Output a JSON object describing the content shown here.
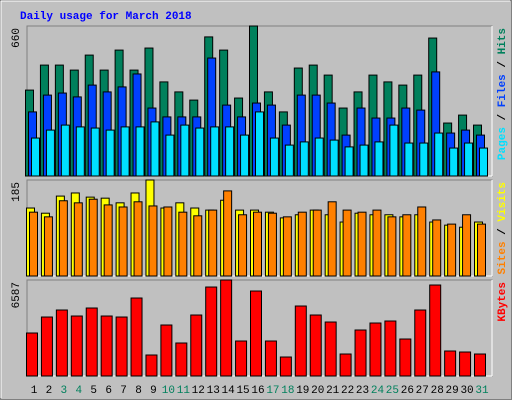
{
  "chart_data": [
    {
      "type": "bar",
      "title": "Daily usage for March 2018",
      "ylim": [
        0,
        660
      ],
      "yticks": [
        660
      ],
      "series": [
        {
          "name": "Hits",
          "color": "#00805c",
          "values": [
            378,
            488,
            488,
            466,
            532,
            466,
            554,
            466,
            563,
            414,
            370,
            334,
            612,
            554,
            343,
            660,
            370,
            282,
            475,
            488,
            444,
            299,
            370,
            444,
            414,
            400,
            444,
            607,
            233,
            268,
            224
          ]
        },
        {
          "name": "Files",
          "color": "#0040ff",
          "values": [
            282,
            356,
            365,
            348,
            400,
            370,
            392,
            449,
            299,
            260,
            260,
            260,
            519,
            312,
            260,
            321,
            312,
            224,
            356,
            356,
            321,
            180,
            299,
            255,
            255,
            299,
            290,
            458,
            189,
            202,
            180
          ]
        },
        {
          "name": "Pages",
          "color": "#00e0ff",
          "values": [
            167,
            202,
            224,
            216,
            211,
            202,
            216,
            216,
            238,
            180,
            224,
            211,
            216,
            216,
            180,
            282,
            167,
            136,
            150,
            167,
            158,
            128,
            136,
            150,
            224,
            145,
            145,
            189,
            123,
            145,
            123
          ]
        }
      ]
    },
    {
      "type": "bar",
      "ylim": [
        0,
        185
      ],
      "yticks": [
        185
      ],
      "series": [
        {
          "name": "Visits",
          "color": "#ffff00",
          "values": [
            131,
            121,
            154,
            160,
            152,
            150,
            141,
            160,
            185,
            131,
            141,
            131,
            127,
            146,
            127,
            127,
            123,
            112,
            118,
            127,
            118,
            104,
            121,
            118,
            118,
            114,
            118,
            104,
            98,
            94,
            104
          ]
        },
        {
          "name": "Sites",
          "color": "#ff8000",
          "values": [
            123,
            114,
            145,
            141,
            148,
            137,
            133,
            143,
            135,
            133,
            123,
            116,
            127,
            164,
            118,
            123,
            121,
            114,
            123,
            127,
            143,
            127,
            123,
            127,
            114,
            118,
            133,
            108,
            100,
            118,
            100
          ]
        }
      ]
    },
    {
      "type": "bar",
      "ylim": [
        0,
        6587
      ],
      "yticks": [
        6587
      ],
      "categories": [
        "1",
        "2",
        "3",
        "4",
        "5",
        "6",
        "7",
        "8",
        "9",
        "10",
        "11",
        "12",
        "13",
        "14",
        "15",
        "16",
        "17",
        "18",
        "19",
        "20",
        "21",
        "22",
        "23",
        "24",
        "25",
        "26",
        "27",
        "28",
        "29",
        "30",
        "31"
      ],
      "category_colors": [
        "#000000",
        "#000000",
        "#00805c",
        "#00805c",
        "#000000",
        "#000000",
        "#000000",
        "#000000",
        "#000000",
        "#00805c",
        "#00805c",
        "#000000",
        "#000000",
        "#000000",
        "#000000",
        "#000000",
        "#00805c",
        "#00805c",
        "#000000",
        "#000000",
        "#000000",
        "#000000",
        "#000000",
        "#00805c",
        "#00805c",
        "#000000",
        "#000000",
        "#000000",
        "#000000",
        "#000000",
        "#00805c"
      ],
      "series": [
        {
          "name": "KBytes",
          "color": "#ff0000",
          "values": [
            2950,
            4047,
            4528,
            4116,
            4665,
            4116,
            4047,
            5351,
            1441,
            3499,
            2264,
            4185,
            6105,
            6587,
            2401,
            5831,
            2401,
            1303,
            4802,
            4185,
            3704,
            1509,
            3156,
            3636,
            3773,
            2538,
            4528,
            6243,
            1715,
            1646,
            1509
          ]
        }
      ]
    }
  ]
}
